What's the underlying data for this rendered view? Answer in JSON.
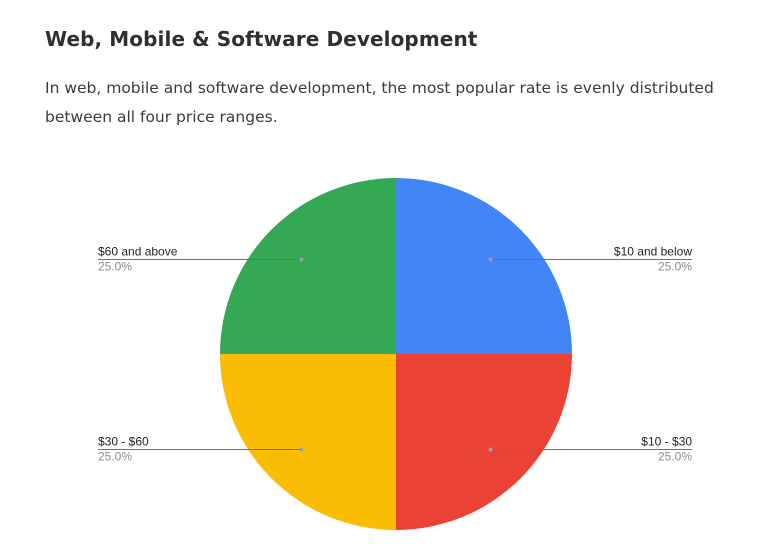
{
  "article": {
    "title": "Web, Mobile & Software Development",
    "description": "In web, mobile and software development, the most popular rate is evenly distributed between all four price ranges."
  },
  "chart_data": {
    "type": "pie",
    "title": "",
    "start_angle_deg": 0,
    "direction": "clockwise",
    "slices": [
      {
        "label": "$10 and below",
        "value": 25.0,
        "percent_label": "25.0%",
        "color": "#4285F4",
        "label_side": "right"
      },
      {
        "label": "$10 - $30",
        "value": 25.0,
        "percent_label": "25.0%",
        "color": "#EA4335",
        "label_side": "right"
      },
      {
        "label": "$30 - $60",
        "value": 25.0,
        "percent_label": "25.0%",
        "color": "#FBBC04",
        "label_side": "left"
      },
      {
        "label": "$60 and above",
        "value": 25.0,
        "percent_label": "25.0%",
        "color": "#34A853",
        "label_side": "left"
      }
    ]
  }
}
